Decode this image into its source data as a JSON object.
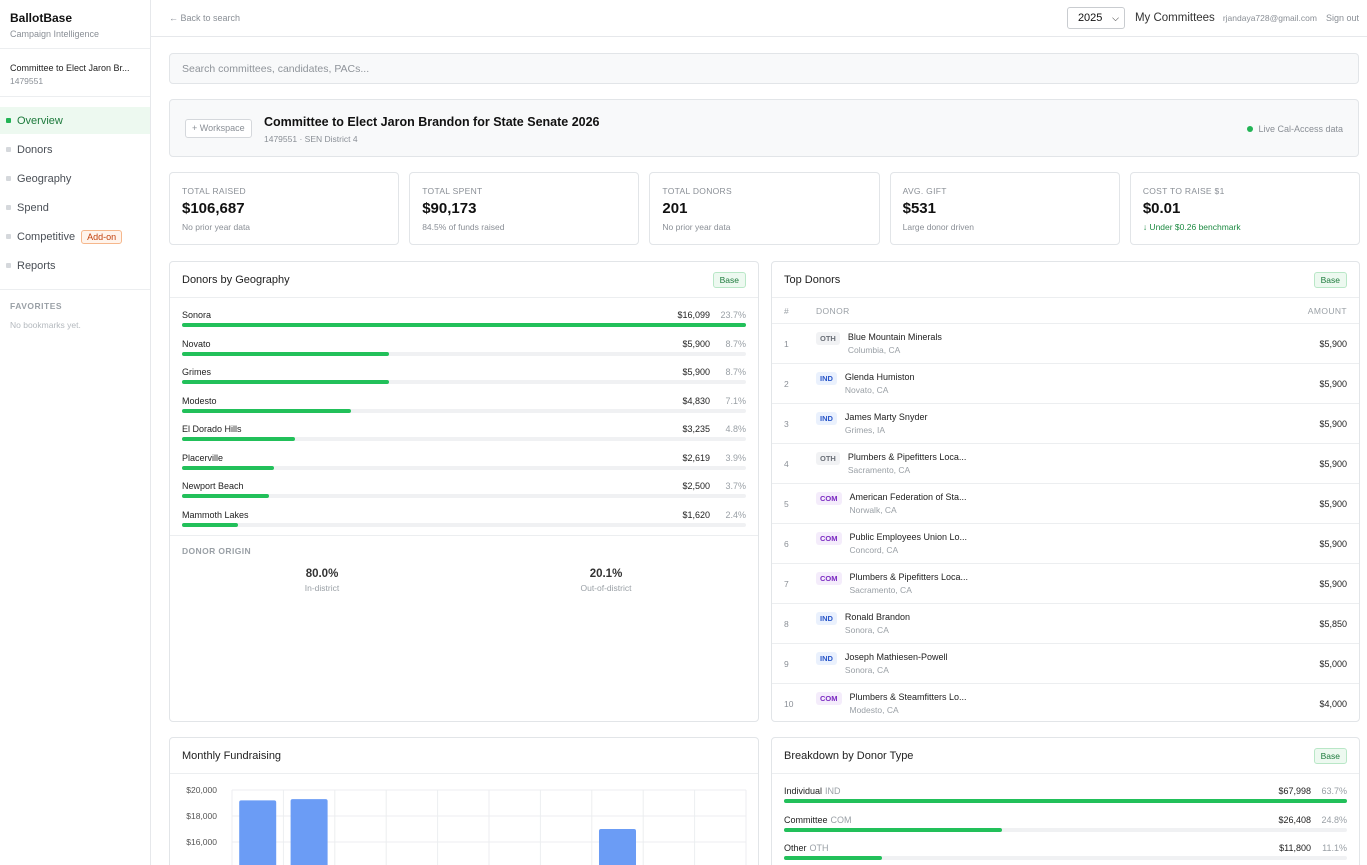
{
  "brand": {
    "name": "BallotBase",
    "subtitle": "Campaign Intelligence"
  },
  "committee": {
    "name": "Committee to Elect Jaron Br...",
    "id": "1479551"
  },
  "nav": [
    {
      "label": "Overview",
      "active": true
    },
    {
      "label": "Donors"
    },
    {
      "label": "Geography"
    },
    {
      "label": "Spend"
    },
    {
      "label": "Competitive",
      "tag": "Add-on"
    },
    {
      "label": "Reports"
    }
  ],
  "favorites": {
    "title": "FAVORITES",
    "empty": "No bookmarks yet."
  },
  "topbar": {
    "back": "← Back to search",
    "year": "2025",
    "my_committees": "My Committees",
    "email": "rjandaya728@gmail.com",
    "signout": "Sign out"
  },
  "search": {
    "placeholder": "Search committees, candidates, PACs..."
  },
  "header": {
    "workspace_button": "+ Workspace",
    "title": "Committee to Elect Jaron Brandon for State Senate 2026",
    "subtitle": "1479551 · SEN District 4",
    "live": "Live Cal-Access data"
  },
  "stats": [
    {
      "label": "TOTAL RAISED",
      "value": "$106,687",
      "note": "No prior year data"
    },
    {
      "label": "TOTAL SPENT",
      "value": "$90,173",
      "note": "84.5% of funds raised"
    },
    {
      "label": "TOTAL DONORS",
      "value": "201",
      "note": "No prior year data"
    },
    {
      "label": "AVG. GIFT",
      "value": "$531",
      "note": "Large donor driven"
    },
    {
      "label": "COST TO RAISE $1",
      "value": "$0.01",
      "note": "↓ Under $0.26 benchmark",
      "good": true
    }
  ],
  "geography": {
    "title": "Donors by Geography",
    "badge": "Base",
    "rows": [
      {
        "name": "Sonora",
        "amount": "$16,099",
        "pct": "23.7%",
        "share": 1.0
      },
      {
        "name": "Novato",
        "amount": "$5,900",
        "pct": "8.7%",
        "share": 0.367
      },
      {
        "name": "Grimes",
        "amount": "$5,900",
        "pct": "8.7%",
        "share": 0.367
      },
      {
        "name": "Modesto",
        "amount": "$4,830",
        "pct": "7.1%",
        "share": 0.3
      },
      {
        "name": "El Dorado Hills",
        "amount": "$3,235",
        "pct": "4.8%",
        "share": 0.2
      },
      {
        "name": "Placerville",
        "amount": "$2,619",
        "pct": "3.9%",
        "share": 0.163
      },
      {
        "name": "Newport Beach",
        "amount": "$2,500",
        "pct": "3.7%",
        "share": 0.155
      },
      {
        "name": "Mammoth Lakes",
        "amount": "$1,620",
        "pct": "2.4%",
        "share": 0.1
      }
    ],
    "origin_title": "DONOR ORIGIN",
    "origin": [
      {
        "value": "80.0%",
        "label": "In-district"
      },
      {
        "value": "20.1%",
        "label": "Out-of-district"
      }
    ]
  },
  "top_donors": {
    "title": "Top Donors",
    "badge": "Base",
    "headers": {
      "rank": "#",
      "donor": "DONOR",
      "amount": "AMOUNT"
    },
    "rows": [
      {
        "rank": "1",
        "type": "OTH",
        "name": "Blue Mountain Minerals",
        "loc": "Columbia, CA",
        "amount": "$5,900"
      },
      {
        "rank": "2",
        "type": "IND",
        "name": "Glenda Humiston",
        "loc": "Novato, CA",
        "amount": "$5,900"
      },
      {
        "rank": "3",
        "type": "IND",
        "name": "James Marty Snyder",
        "loc": "Grimes, IA",
        "amount": "$5,900"
      },
      {
        "rank": "4",
        "type": "OTH",
        "name": "Plumbers & Pipefitters Loca...",
        "loc": "Sacramento, CA",
        "amount": "$5,900"
      },
      {
        "rank": "5",
        "type": "COM",
        "name": "American Federation of Sta...",
        "loc": "Norwalk, CA",
        "amount": "$5,900"
      },
      {
        "rank": "6",
        "type": "COM",
        "name": "Public Employees Union Lo...",
        "loc": "Concord, CA",
        "amount": "$5,900"
      },
      {
        "rank": "7",
        "type": "COM",
        "name": "Plumbers & Pipefitters Loca...",
        "loc": "Sacramento, CA",
        "amount": "$5,900"
      },
      {
        "rank": "8",
        "type": "IND",
        "name": "Ronald Brandon",
        "loc": "Sonora, CA",
        "amount": "$5,850"
      },
      {
        "rank": "9",
        "type": "IND",
        "name": "Joseph Mathiesen-Powell",
        "loc": "Sonora, CA",
        "amount": "$5,000"
      },
      {
        "rank": "10",
        "type": "COM",
        "name": "Plumbers & Steamfitters Lo...",
        "loc": "Modesto, CA",
        "amount": "$4,000"
      }
    ]
  },
  "monthly": {
    "title": "Monthly Fundraising"
  },
  "chart_data": {
    "type": "bar",
    "title": "Monthly Fundraising",
    "ytick_labels": [
      "$20,000",
      "$18,000",
      "$16,000",
      "$14,000"
    ],
    "ylim": [
      14000,
      20500
    ],
    "values": [
      19200,
      19300,
      null,
      null,
      null,
      null,
      null,
      17000,
      null,
      null
    ],
    "color": "#6b9cf5",
    "grid": true
  },
  "breakdown": {
    "title": "Breakdown by Donor Type",
    "badge": "Base",
    "rows": [
      {
        "label": "Individual",
        "code": "IND",
        "amount": "$67,998",
        "pct": "63.7%",
        "share": 1.0
      },
      {
        "label": "Committee",
        "code": "COM",
        "amount": "$26,408",
        "pct": "24.8%",
        "share": 0.388
      },
      {
        "label": "Other",
        "code": "OTH",
        "amount": "$11,800",
        "pct": "11.1%",
        "share": 0.174
      }
    ]
  },
  "colors": {
    "accent": "#22c05a",
    "bar": "#6b9cf5"
  }
}
